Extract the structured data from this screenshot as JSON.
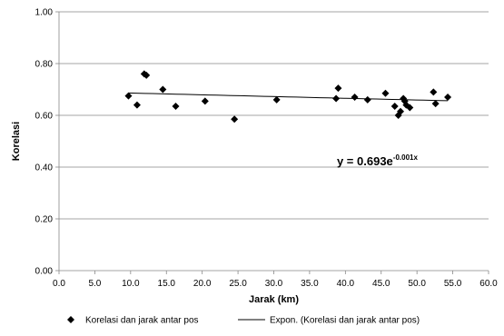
{
  "chart_data": {
    "type": "scatter",
    "xlabel": "Jarak (km)",
    "ylabel": "Korelasi",
    "xlim": [
      0,
      60
    ],
    "ylim": [
      0,
      1
    ],
    "x_ticks": [
      "0.0",
      "5.0",
      "10.0",
      "15.0",
      "20.0",
      "25.0",
      "30.0",
      "35.0",
      "40.0",
      "45.0",
      "50.0",
      "55.0",
      "60.0"
    ],
    "y_ticks": [
      "0.00",
      "0.20",
      "0.40",
      "0.60",
      "0.80",
      "1.00"
    ],
    "grid": "horizontal",
    "legend_position": "bottom",
    "series": [
      {
        "name": "Korelasi dan jarak antar pos",
        "marker": "diamond",
        "x": [
          9.7,
          10.9,
          11.9,
          12.2,
          14.5,
          16.3,
          20.4,
          24.5,
          30.4,
          38.7,
          39.0,
          41.3,
          43.1,
          45.6,
          46.9,
          47.4,
          47.7,
          48.1,
          48.3,
          48.5,
          49.0,
          52.3,
          52.6,
          54.3
        ],
        "y": [
          0.675,
          0.64,
          0.76,
          0.755,
          0.7,
          0.635,
          0.655,
          0.585,
          0.66,
          0.665,
          0.705,
          0.67,
          0.66,
          0.685,
          0.635,
          0.6,
          0.615,
          0.665,
          0.655,
          0.64,
          0.63,
          0.69,
          0.645,
          0.67
        ]
      },
      {
        "name": "Expon. (Korelasi dan jarak antar pos)",
        "type": "trendline",
        "a": 0.693,
        "b": -0.001,
        "x_range": [
          9.7,
          54.3
        ]
      }
    ],
    "annotation": {
      "base": "y = 0.693e",
      "exponent": "-0.001x",
      "x": 43.0,
      "y": 0.4
    }
  },
  "colors": {
    "marker": "#000000",
    "trendline": "#000000",
    "grid": "#888888",
    "axis": "#888888"
  }
}
